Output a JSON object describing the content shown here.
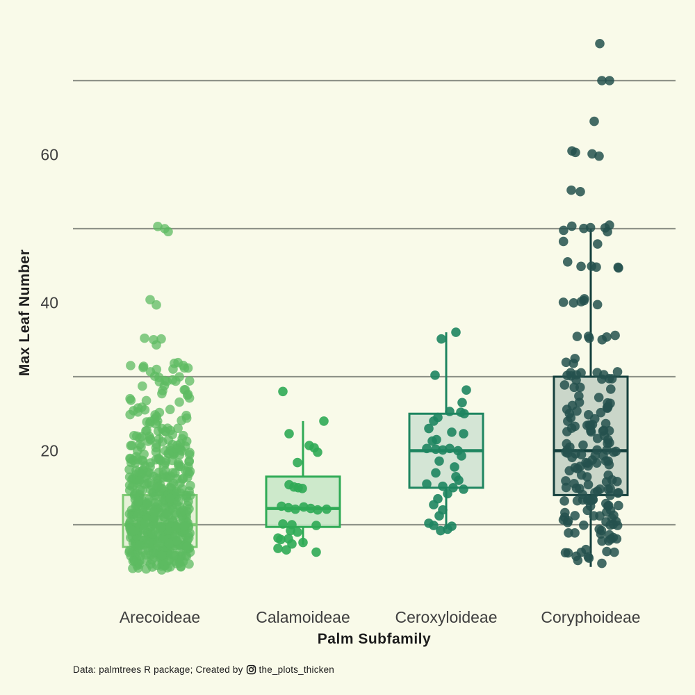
{
  "page": {
    "background": "#f9fae9"
  },
  "chart_data": {
    "type": "boxplot",
    "title": "",
    "xlabel": "Palm Subfamily",
    "ylabel": "Max Leaf Number",
    "caption": {
      "prefix": "Data: palmtrees R package; Created by",
      "icon": "instagram-icon",
      "handle": "the_plots_thicken"
    },
    "colors": {
      "background": "#f9fae9",
      "gridline": "#8f9389",
      "axis_title_text": "#1c1c1c",
      "tick_text": "#3f3f3f",
      "caption_text": "#1a1a1a"
    },
    "y_axis": {
      "label_ticks": [
        20,
        40,
        60
      ],
      "gridline_values": [
        10,
        30,
        50,
        70
      ],
      "ylim": [
        0,
        78
      ],
      "grid": "horizontal-only"
    },
    "x_axis": {
      "categories": [
        "Arecoideae",
        "Calamoideae",
        "Ceroxyloideae",
        "Coryphoideae"
      ]
    },
    "legend": "none",
    "groups": [
      {
        "name": "Arecoideae",
        "seed": 11,
        "point_color": "#5dbb61",
        "point_opacity": 0.75,
        "box_stroke": "#7ec973",
        "box_fill": "#e4f0d5",
        "jitter_spread": 44,
        "box": {
          "q1": 7,
          "median": 10,
          "q3": 14,
          "whisker_low": 4,
          "whisker_high": 24
        },
        "jitter_bands": [
          {
            "lo": 3.8,
            "hi": 5,
            "n": 22
          },
          {
            "lo": 5,
            "hi": 7,
            "n": 60
          },
          {
            "lo": 7,
            "hi": 9,
            "n": 75
          },
          {
            "lo": 9,
            "hi": 11,
            "n": 75
          },
          {
            "lo": 11,
            "hi": 13,
            "n": 65
          },
          {
            "lo": 13,
            "hi": 15,
            "n": 55
          },
          {
            "lo": 15,
            "hi": 17,
            "n": 45
          },
          {
            "lo": 17,
            "hi": 19,
            "n": 38
          },
          {
            "lo": 19,
            "hi": 21,
            "n": 30
          },
          {
            "lo": 21,
            "hi": 23,
            "n": 22
          },
          {
            "lo": 23,
            "hi": 25,
            "n": 14
          },
          {
            "lo": 25,
            "hi": 27,
            "n": 10
          },
          {
            "lo": 27,
            "hi": 29,
            "n": 10
          },
          {
            "lo": 29,
            "hi": 31.5,
            "n": 16
          },
          {
            "lo": 31.5,
            "hi": 32.5,
            "n": 4
          }
        ],
        "extra_points": [
          {
            "v": 50.3,
            "dx": -3
          },
          {
            "v": 50,
            "dx": 7
          },
          {
            "v": 49.6,
            "dx": 12
          },
          {
            "v": 40.4,
            "dx": -14
          },
          {
            "v": 39.7,
            "dx": -5
          },
          {
            "v": 35.2,
            "dx": -22
          },
          {
            "v": 35,
            "dx": -9
          },
          {
            "v": 35.1,
            "dx": 2
          },
          {
            "v": 34.3,
            "dx": -5
          }
        ]
      },
      {
        "name": "Calamoideae",
        "seed": 22,
        "point_color": "#2faa55",
        "point_opacity": 0.9,
        "box_stroke": "#2faa55",
        "box_fill": "#c9e7c8",
        "jitter_spread": 36,
        "box": {
          "q1": 9.7,
          "median": 12.2,
          "q3": 16.5,
          "whisker_low": 7.3,
          "whisker_high": 24
        },
        "jitter_bands": [],
        "extra_points": [
          {
            "v": 28,
            "dx": -29
          },
          {
            "v": 24,
            "dx": 30
          },
          {
            "v": 22.3,
            "dx": -20
          },
          {
            "v": 20.7,
            "dx": 9
          },
          {
            "v": 20.4,
            "dx": 16
          },
          {
            "v": 19.8,
            "dx": 21
          },
          {
            "v": 18.4,
            "dx": -8
          },
          {
            "v": 15.4,
            "dx": -20
          },
          {
            "v": 15.1,
            "dx": -13
          },
          {
            "v": 15,
            "dx": -7
          },
          {
            "v": 14.9,
            "dx": -1
          },
          {
            "v": 12.5,
            "dx": -31
          },
          {
            "v": 12.3,
            "dx": -21
          },
          {
            "v": 12.1,
            "dx": -11
          },
          {
            "v": 12.4,
            "dx": 1
          },
          {
            "v": 12.2,
            "dx": 11
          },
          {
            "v": 12,
            "dx": 21
          },
          {
            "v": 12.1,
            "dx": 34
          },
          {
            "v": 10.1,
            "dx": -29
          },
          {
            "v": 10,
            "dx": -16
          },
          {
            "v": 9.9,
            "dx": 19
          },
          {
            "v": 9.2,
            "dx": -18
          },
          {
            "v": 9,
            "dx": -8
          },
          {
            "v": 8.2,
            "dx": -36
          },
          {
            "v": 8,
            "dx": -32
          },
          {
            "v": 8.1,
            "dx": -21
          },
          {
            "v": 7.4,
            "dx": -16
          },
          {
            "v": 7.6,
            "dx": 0
          },
          {
            "v": 6.8,
            "dx": -36
          },
          {
            "v": 6.6,
            "dx": -24
          },
          {
            "v": 6.3,
            "dx": 19
          }
        ]
      },
      {
        "name": "Ceroxyloideae",
        "seed": 33,
        "point_color": "#1e8560",
        "point_opacity": 0.9,
        "box_stroke": "#1e8560",
        "box_fill": "#d0e3d3",
        "jitter_spread": 32,
        "box": {
          "q1": 15,
          "median": 20,
          "q3": 25,
          "whisker_low": 9.4,
          "whisker_high": 36
        },
        "jitter_bands": [],
        "extra_points": [
          {
            "v": 36,
            "dx": 14
          },
          {
            "v": 35.1,
            "dx": -7
          },
          {
            "v": 30.2,
            "dx": -16
          },
          {
            "v": 28.2,
            "dx": 29
          },
          {
            "v": 26.5,
            "dx": 23
          },
          {
            "v": 25.3,
            "dx": 5
          },
          {
            "v": 25.2,
            "dx": 21
          },
          {
            "v": 25,
            "dx": 26
          },
          {
            "v": 24.5,
            "dx": -12
          },
          {
            "v": 24,
            "dx": -18
          },
          {
            "v": 23,
            "dx": -25
          },
          {
            "v": 22.5,
            "dx": 8
          },
          {
            "v": 22.3,
            "dx": 25
          },
          {
            "v": 21.5,
            "dx": -14
          },
          {
            "v": 21.3,
            "dx": -20
          },
          {
            "v": 20.3,
            "dx": -28
          },
          {
            "v": 20.2,
            "dx": -15
          },
          {
            "v": 20.1,
            "dx": -5
          },
          {
            "v": 20.3,
            "dx": 5
          },
          {
            "v": 20,
            "dx": 17
          },
          {
            "v": 19.3,
            "dx": 22
          },
          {
            "v": 18.6,
            "dx": -10
          },
          {
            "v": 17.8,
            "dx": 12
          },
          {
            "v": 17,
            "dx": -15
          },
          {
            "v": 16.5,
            "dx": 14
          },
          {
            "v": 16,
            "dx": 18
          },
          {
            "v": 15.5,
            "dx": -28
          },
          {
            "v": 15.2,
            "dx": -5
          },
          {
            "v": 15,
            "dx": 10
          },
          {
            "v": 14.8,
            "dx": 25
          },
          {
            "v": 14.2,
            "dx": 2
          },
          {
            "v": 13.5,
            "dx": -12
          },
          {
            "v": 12.7,
            "dx": -18
          },
          {
            "v": 12,
            "dx": -5
          },
          {
            "v": 11.2,
            "dx": -10
          },
          {
            "v": 10.2,
            "dx": -25
          },
          {
            "v": 9.9,
            "dx": -18
          },
          {
            "v": 9.8,
            "dx": 8
          },
          {
            "v": 9.4,
            "dx": 2
          },
          {
            "v": 9.2,
            "dx": -8
          }
        ]
      },
      {
        "name": "Coryphoideae",
        "seed": 44,
        "point_color": "#24514e",
        "point_opacity": 0.85,
        "box_stroke": "#15403d",
        "box_fill": "#c6d3c6",
        "jitter_spread": 40,
        "box": {
          "q1": 14,
          "median": 20,
          "q3": 30,
          "whisker_low": 4.3,
          "whisker_high": 50
        },
        "jitter_bands": [
          {
            "lo": 49.5,
            "hi": 50.5,
            "n": 7
          },
          {
            "lo": 47.6,
            "hi": 48.4,
            "n": 2
          },
          {
            "lo": 44.2,
            "hi": 45.6,
            "n": 6
          },
          {
            "lo": 39.7,
            "hi": 40.7,
            "n": 6
          },
          {
            "lo": 34.7,
            "hi": 35.7,
            "n": 6
          },
          {
            "lo": 31.6,
            "hi": 32.6,
            "n": 3
          },
          {
            "lo": 29.5,
            "hi": 30.7,
            "n": 12
          },
          {
            "lo": 27,
            "hi": 29,
            "n": 6
          },
          {
            "lo": 24,
            "hi": 27,
            "n": 14
          },
          {
            "lo": 21.5,
            "hi": 24,
            "n": 16
          },
          {
            "lo": 19.5,
            "hi": 21.5,
            "n": 14
          },
          {
            "lo": 17,
            "hi": 19.5,
            "n": 16
          },
          {
            "lo": 14.5,
            "hi": 17,
            "n": 16
          },
          {
            "lo": 12,
            "hi": 14.5,
            "n": 18
          },
          {
            "lo": 10,
            "hi": 12,
            "n": 16
          },
          {
            "lo": 8,
            "hi": 10,
            "n": 12
          },
          {
            "lo": 6,
            "hi": 8,
            "n": 8
          },
          {
            "lo": 4.3,
            "hi": 6,
            "n": 5
          }
        ],
        "extra_points": [
          {
            "v": 75,
            "dx": 13
          },
          {
            "v": 70,
            "dx": 16
          },
          {
            "v": 70,
            "dx": 27
          },
          {
            "v": 64.5,
            "dx": 5
          },
          {
            "v": 60.5,
            "dx": -27
          },
          {
            "v": 60.3,
            "dx": -22
          },
          {
            "v": 60.1,
            "dx": 2
          },
          {
            "v": 59.8,
            "dx": 12
          },
          {
            "v": 55.2,
            "dx": -28
          },
          {
            "v": 55,
            "dx": -15
          }
        ]
      }
    ]
  }
}
